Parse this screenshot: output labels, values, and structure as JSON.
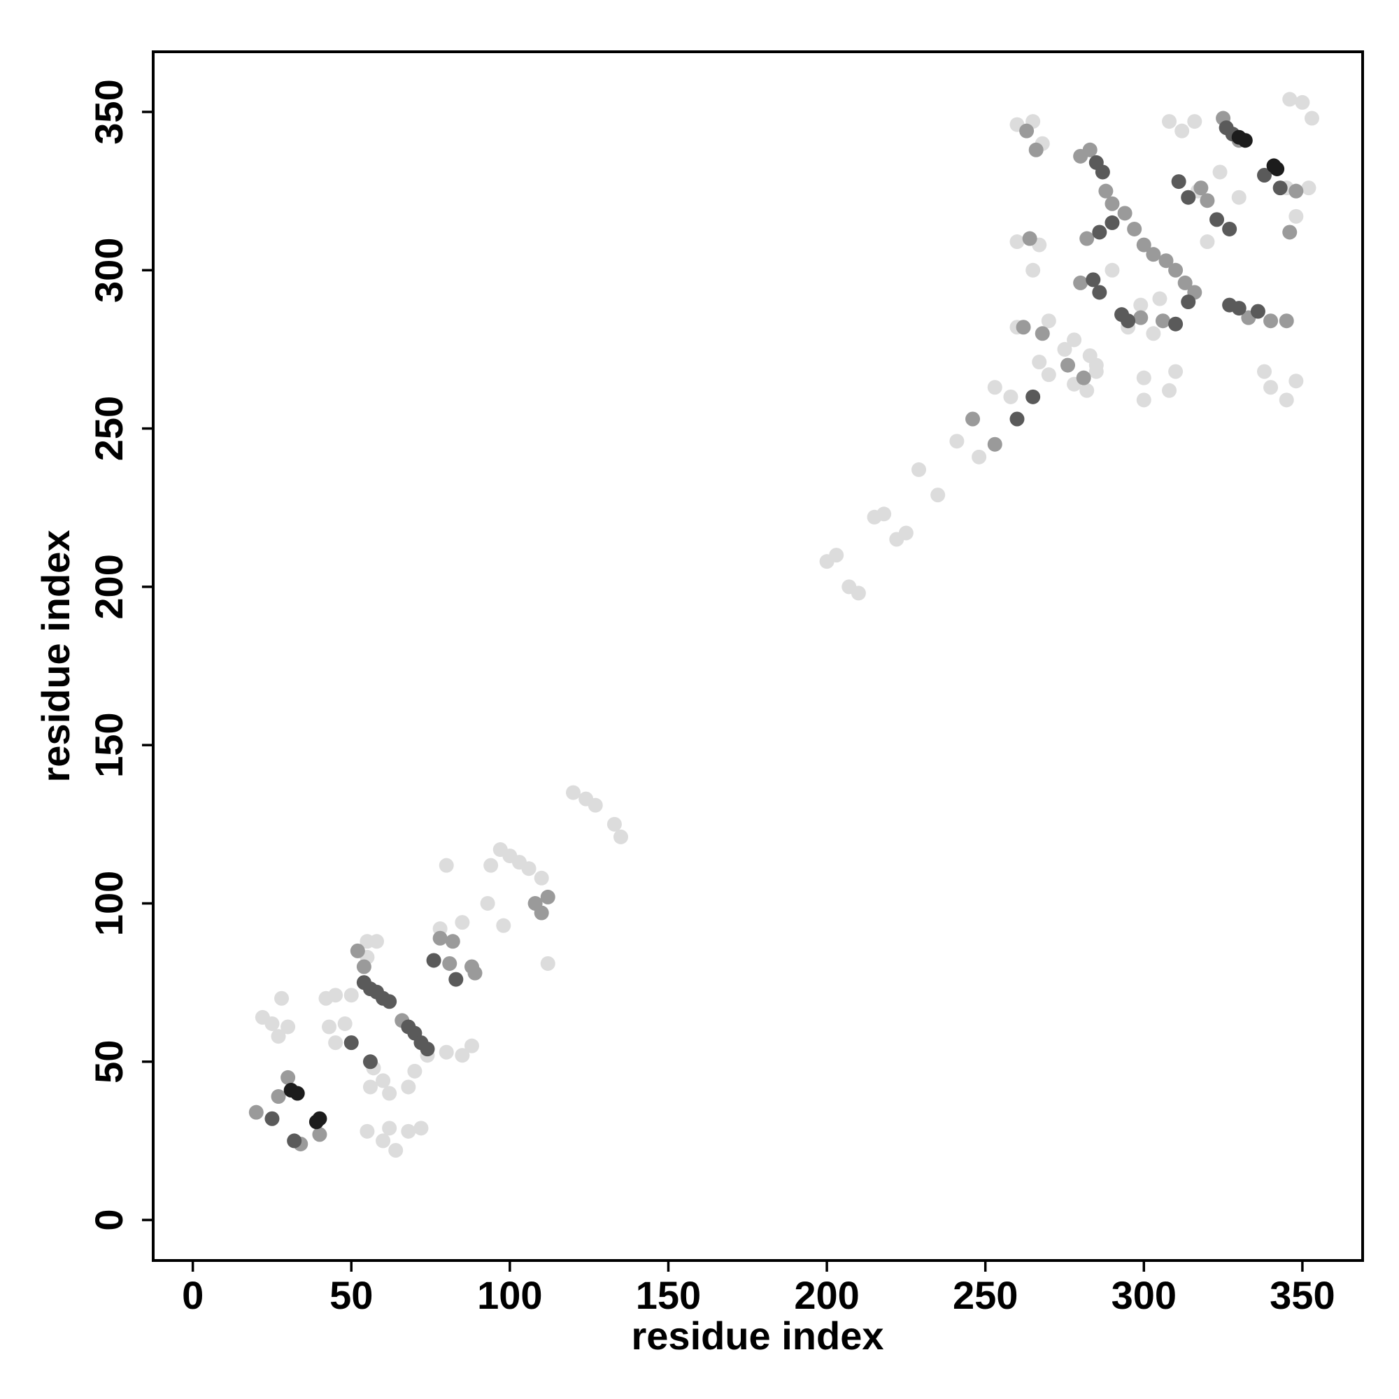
{
  "chart_data": {
    "type": "scatter",
    "xlabel": "residue index",
    "ylabel": "residue index",
    "xlim": [
      -12.5,
      369
    ],
    "ylim": [
      -12.8,
      369
    ],
    "xticks": [
      0,
      50,
      100,
      150,
      200,
      250,
      300,
      350
    ],
    "yticks": [
      0,
      50,
      100,
      150,
      200,
      250,
      300,
      350
    ],
    "series": [
      {
        "color": "#dcdcdc",
        "x": [
          22,
          25,
          28,
          30,
          27,
          43,
          45,
          48,
          42,
          45,
          50,
          55,
          58,
          55,
          57,
          56,
          60,
          62,
          55,
          60,
          62,
          64,
          68,
          72,
          68,
          70,
          74,
          80,
          85,
          88,
          78,
          85,
          80,
          94,
          97,
          100,
          103,
          106,
          110,
          93,
          98,
          112,
          120,
          124,
          127,
          133,
          135,
          200,
          203,
          207,
          210,
          215,
          218,
          222,
          225,
          229,
          235,
          241,
          248,
          253,
          258,
          267,
          270,
          275,
          278,
          270,
          285,
          260,
          265,
          268,
          260,
          267,
          265,
          260,
          282,
          285,
          300,
          310,
          308,
          312,
          308,
          316,
          340,
          345,
          348,
          338,
          350,
          353,
          346,
          345,
          352,
          348,
          330,
          324,
          317,
          283,
          300,
          299,
          303,
          290,
          278,
          295,
          305,
          320
        ],
        "y": [
          64,
          62,
          70,
          61,
          58,
          61,
          56,
          62,
          70,
          71,
          71,
          88,
          88,
          83,
          48,
          42,
          44,
          40,
          28,
          25,
          29,
          22,
          28,
          29,
          42,
          47,
          52,
          53,
          52,
          55,
          92,
          94,
          112,
          112,
          117,
          115,
          113,
          111,
          108,
          100,
          93,
          81,
          135,
          133,
          131,
          125,
          121,
          208,
          210,
          200,
          198,
          222,
          223,
          215,
          217,
          237,
          229,
          246,
          241,
          263,
          260,
          271,
          267,
          275,
          278,
          284,
          270,
          346,
          347,
          340,
          309,
          308,
          300,
          282,
          262,
          268,
          266,
          268,
          262,
          344,
          347,
          347,
          263,
          259,
          265,
          268,
          353,
          348,
          354,
          326,
          326,
          317,
          323,
          331,
          325,
          273,
          259,
          289,
          280,
          300,
          264,
          282,
          291,
          309
        ]
      },
      {
        "color": "#9a9a9a",
        "x": [
          20,
          27,
          30,
          34,
          40,
          52,
          54,
          66,
          78,
          82,
          88,
          89,
          81,
          108,
          110,
          112,
          280,
          283,
          288,
          290,
          294,
          297,
          300,
          303,
          307,
          310,
          313,
          316,
          280,
          282,
          299,
          306,
          318,
          320,
          330,
          263,
          266,
          264,
          262,
          268,
          276,
          281,
          346,
          345,
          348,
          246,
          253,
          325,
          333,
          340
        ],
        "y": [
          34,
          39,
          45,
          24,
          27,
          85,
          80,
          63,
          89,
          88,
          80,
          78,
          81,
          100,
          97,
          102,
          336,
          338,
          325,
          321,
          318,
          313,
          308,
          305,
          303,
          300,
          296,
          293,
          296,
          310,
          285,
          284,
          326,
          322,
          341,
          344,
          338,
          310,
          282,
          280,
          270,
          266,
          312,
          284,
          325,
          253,
          245,
          348,
          285,
          284
        ]
      },
      {
        "color": "#5a5a5a",
        "x": [
          25,
          32,
          54,
          56,
          58,
          60,
          62,
          68,
          70,
          72,
          74,
          285,
          287,
          284,
          286,
          293,
          295,
          311,
          314,
          326,
          328,
          338,
          343,
          323,
          327,
          327,
          330,
          336,
          314,
          310,
          260,
          265,
          50,
          56,
          83,
          76,
          286,
          290
        ],
        "y": [
          32,
          25,
          75,
          73,
          72,
          70,
          69,
          61,
          59,
          56,
          54,
          334,
          331,
          297,
          293,
          286,
          284,
          328,
          323,
          345,
          343,
          330,
          326,
          316,
          313,
          289,
          288,
          287,
          290,
          283,
          253,
          260,
          56,
          50,
          76,
          82,
          312,
          315
        ]
      },
      {
        "color": "#1c1c1c",
        "x": [
          33,
          31,
          40,
          39,
          332,
          330,
          341,
          342
        ],
        "y": [
          40,
          41,
          32,
          31,
          341,
          342,
          333,
          332
        ]
      }
    ]
  }
}
